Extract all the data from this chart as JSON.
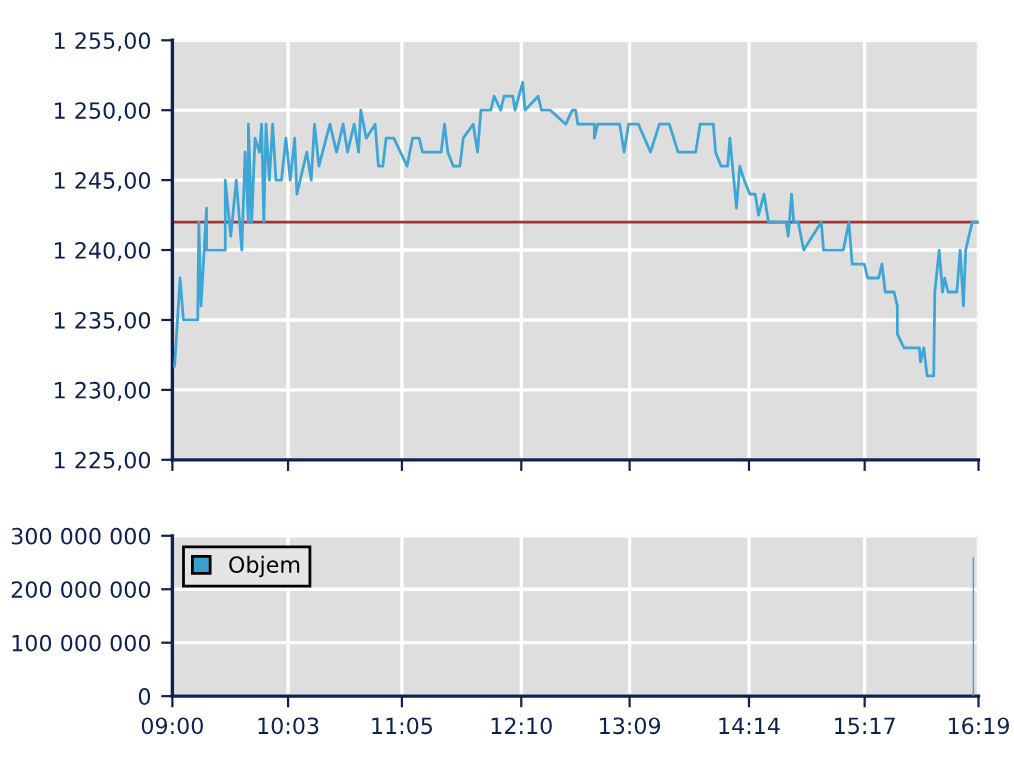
{
  "chart_data": [
    {
      "type": "line",
      "x": [
        9.02,
        9.07,
        9.1,
        9.23,
        9.24,
        9.26,
        9.31,
        9.31,
        9.48,
        9.48,
        9.53,
        9.58,
        9.63,
        9.66,
        9.69,
        9.69,
        9.72,
        9.75,
        9.79,
        9.81,
        9.83,
        9.85,
        9.88,
        9.91,
        9.94,
        9.99,
        10.03,
        10.07,
        10.11,
        10.13,
        10.22,
        10.26,
        10.29,
        10.33,
        10.43,
        10.49,
        10.55,
        10.59,
        10.65,
        10.69,
        10.71,
        10.76,
        10.84,
        10.87,
        10.91,
        10.94,
        11.01,
        11.13,
        11.18,
        11.24,
        11.27,
        11.44,
        11.47,
        11.5,
        11.55,
        11.61,
        11.64,
        11.73,
        11.77,
        11.8,
        11.89,
        11.92,
        11.98,
        12.01,
        12.09,
        12.11,
        12.18,
        12.2,
        12.32,
        12.35,
        12.43,
        12.57,
        12.63,
        12.66,
        12.68,
        12.83,
        12.83,
        12.86,
        13.06,
        13.1,
        13.14,
        13.23,
        13.34,
        13.42,
        13.51,
        13.59,
        13.75,
        13.79,
        13.91,
        13.93,
        13.98,
        14.04,
        14.06,
        14.12,
        14.15,
        14.19,
        14.24,
        14.29,
        14.32,
        14.37,
        14.41,
        14.57,
        14.59,
        14.62,
        14.64,
        14.68,
        14.73,
        14.89,
        14.91,
        15.09,
        15.14,
        15.17,
        15.28,
        15.31,
        15.41,
        15.44,
        15.47,
        15.55,
        15.58,
        15.58,
        15.64,
        15.68,
        15.78,
        15.79,
        15.82,
        15.85,
        15.91,
        15.92,
        15.96,
        15.99,
        16.01,
        16.04,
        16.12,
        16.15,
        16.18,
        16.2,
        16.26,
        16.31
      ],
      "series": [
        {
          "color": "#3ea6d6",
          "values": [
            1231.7,
            1238,
            1235,
            1235,
            1242,
            1236,
            1243,
            1240,
            1240,
            1245,
            1241,
            1245,
            1240,
            1247,
            1242,
            1249,
            1242,
            1248,
            1247,
            1249,
            1242,
            1249,
            1245,
            1249,
            1245,
            1245,
            1248,
            1245,
            1248,
            1244,
            1247,
            1245,
            1249,
            1246,
            1249,
            1247,
            1249,
            1247,
            1249,
            1247,
            1250,
            1248,
            1249,
            1246,
            1246,
            1248,
            1248,
            1246,
            1248,
            1248,
            1247,
            1247,
            1249,
            1247,
            1246,
            1246,
            1248,
            1249,
            1247,
            1250,
            1250,
            1251,
            1250,
            1251,
            1251,
            1250,
            1252,
            1250,
            1251,
            1250,
            1250,
            1249,
            1250,
            1250,
            1249,
            1249,
            1248,
            1249,
            1249,
            1247,
            1249,
            1249,
            1247,
            1249,
            1249,
            1247,
            1247,
            1249,
            1249,
            1247,
            1246,
            1246,
            1248,
            1243,
            1246,
            1245,
            1244,
            1244,
            1242.5,
            1244,
            1242,
            1242,
            1241,
            1244,
            1242,
            1242,
            1240,
            1242,
            1240,
            1240,
            1242,
            1239,
            1239,
            1238,
            1238,
            1239,
            1237,
            1237,
            1236,
            1234,
            1233,
            1233,
            1233,
            1232,
            1233,
            1231,
            1231,
            1237,
            1240,
            1237,
            1238,
            1237,
            1237,
            1240,
            1236,
            1240,
            1242,
            1242
          ]
        }
      ],
      "xlim": [
        9,
        16.3167
      ],
      "xticks": [
        {
          "value": 9,
          "label": null
        },
        {
          "value": 10.05,
          "label": null
        },
        {
          "value": 11.0833,
          "label": null
        },
        {
          "value": 12.1667,
          "label": null
        },
        {
          "value": 13.15,
          "label": null
        },
        {
          "value": 14.2333,
          "label": null
        },
        {
          "value": 15.2833,
          "label": null
        },
        {
          "value": 16.3167,
          "label": null
        }
      ],
      "ylim": [
        1225,
        1255
      ],
      "yticks": [
        {
          "value": 1225,
          "label": "1 225,00"
        },
        {
          "value": 1230,
          "label": "1 230,00"
        },
        {
          "value": 1235,
          "label": "1 235,00"
        },
        {
          "value": 1240,
          "label": "1 240,00"
        },
        {
          "value": 1245,
          "label": "1 245,00"
        },
        {
          "value": 1250,
          "label": "1 250,00"
        },
        {
          "value": 1255,
          "label": "1 255,00"
        }
      ],
      "ref_lines": [
        {
          "axis": "y",
          "value": 1242,
          "color": "#a83232"
        }
      ],
      "grid": true,
      "tick_labels": "y"
    },
    {
      "type": "bar",
      "x": [
        16.27
      ],
      "series": [
        {
          "name": "Objem",
          "color": "#3a9fd0",
          "values": [
            260000000
          ]
        }
      ],
      "xlim": [
        9,
        16.3167
      ],
      "xticks": [
        {
          "value": 9,
          "label": "09:00"
        },
        {
          "value": 10.05,
          "label": "10:03"
        },
        {
          "value": 11.0833,
          "label": "11:05"
        },
        {
          "value": 12.1667,
          "label": "12:10"
        },
        {
          "value": 13.15,
          "label": "13:09"
        },
        {
          "value": 14.2333,
          "label": "14:14"
        },
        {
          "value": 15.2833,
          "label": "15:17"
        },
        {
          "value": 16.3167,
          "label": "16:19"
        }
      ],
      "ylim": [
        0,
        300000000
      ],
      "yticks": [
        {
          "value": 0,
          "label": "0"
        },
        {
          "value": 100000000,
          "label": "100 000 000"
        },
        {
          "value": 200000000,
          "label": "200 000 000"
        },
        {
          "value": 300000000,
          "label": "300 000 000"
        }
      ],
      "grid": true,
      "legend": "top left"
    }
  ]
}
